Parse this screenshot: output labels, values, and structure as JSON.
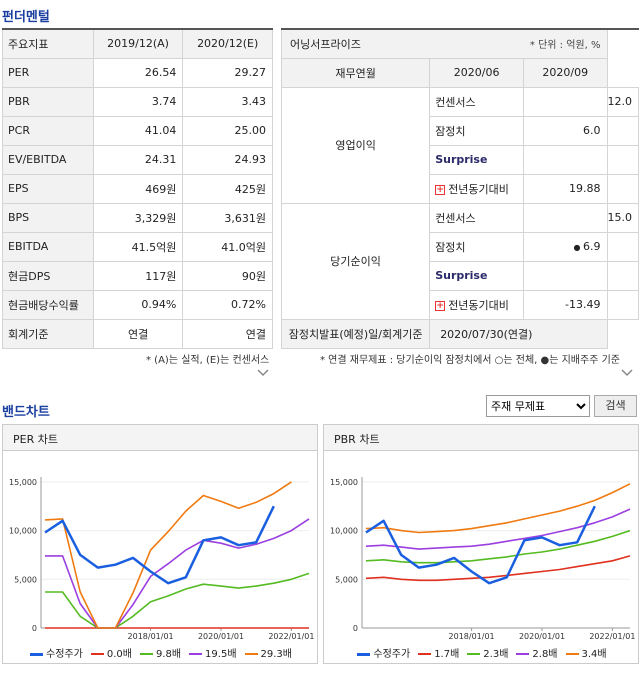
{
  "fundamental": {
    "title": "펀더멘털",
    "headers": [
      "주요지표",
      "2019/12(A)",
      "2020/12(E)"
    ],
    "rows": [
      {
        "label": "PER",
        "a": "26.54",
        "b": "29.27"
      },
      {
        "label": "PBR",
        "a": "3.74",
        "b": "3.43"
      },
      {
        "label": "PCR",
        "a": "41.04",
        "b": "25.00"
      },
      {
        "label": "EV/EBITDA",
        "a": "24.31",
        "b": "24.93"
      },
      {
        "label": "EPS",
        "a": "469원",
        "b": "425원"
      },
      {
        "label": "BPS",
        "a": "3,329원",
        "b": "3,631원"
      },
      {
        "label": "EBITDA",
        "a": "41.5억원",
        "b": "41.0억원"
      },
      {
        "label": "현금DPS",
        "a": "117원",
        "b": "90원"
      },
      {
        "label": "현금배당수익률",
        "a": "0.94%",
        "b": "0.72%"
      },
      {
        "label": "회계기준",
        "a": "연결",
        "b": "연결"
      }
    ],
    "note": "* (A)는 실적, (E)는 컨센서스"
  },
  "surprise": {
    "title": "어닝서프라이즈",
    "unit": "* 단위 : 억원, %",
    "headers": [
      "재무연월",
      "2020/06",
      "2020/09"
    ],
    "groups": [
      {
        "name": "영업이익",
        "rows": [
          {
            "label": "컨센서스",
            "a": "",
            "b": "12.0"
          },
          {
            "label": "잠정치",
            "a": "6.0",
            "b": ""
          },
          {
            "label": "Surprise",
            "a": "",
            "b": ""
          },
          {
            "label": "전년동기대비",
            "a": "19.88",
            "b": ""
          }
        ]
      },
      {
        "name": "당기순이익",
        "rows": [
          {
            "label": "컨센서스",
            "a": "",
            "b": "15.0"
          },
          {
            "label": "잠정치",
            "a": "6.9",
            "b": ""
          },
          {
            "label": "Surprise",
            "a": "",
            "b": ""
          },
          {
            "label": "전년동기대비",
            "a": "-13.49",
            "b": ""
          }
        ]
      }
    ],
    "footer_label": "잠정치발표(예정)일/회계기준",
    "footer_value": "2020/07/30(연결)",
    "note": "* 연결 재무제표 : 당기순이익 잠정치에서 ○는 전체, ●는 지배주주 기준"
  },
  "band": {
    "title": "밴드차트",
    "select_value": "주재 무제표",
    "search_label": "검색"
  },
  "chart_data": [
    {
      "type": "line",
      "title": "PER 차트",
      "x": [
        "2015/01",
        "2015/07",
        "2016/01",
        "2016/07",
        "2017/01",
        "2017/07",
        "2018/01",
        "2018/07",
        "2019/01",
        "2019/07",
        "2020/01",
        "2020/07",
        "2021/01",
        "2021/07",
        "2022/01",
        "2022/07"
      ],
      "xticks": [
        "2018/01/01",
        "2020/01/01",
        "2022/01/01"
      ],
      "yticks": [
        "0",
        "5,000",
        "10,000",
        "15,000"
      ],
      "ylim": [
        0,
        15500
      ],
      "series": [
        {
          "name": "수정주가",
          "color": "#1a5fe0",
          "values": [
            9800,
            11000,
            7500,
            6200,
            6500,
            7200,
            5800,
            4600,
            5200,
            9000,
            9300,
            8500,
            8800,
            12500,
            null,
            null
          ]
        },
        {
          "name": "0.0배",
          "color": "#e0301e",
          "values": [
            0,
            0,
            0,
            0,
            0,
            0,
            0,
            0,
            0,
            0,
            0,
            0,
            0,
            0,
            0,
            0
          ]
        },
        {
          "name": "9.8배",
          "color": "#55bb22",
          "values": [
            3700,
            3700,
            1200,
            0,
            0,
            1200,
            2700,
            3300,
            4000,
            4500,
            4300,
            4100,
            4300,
            4600,
            5000,
            5600
          ]
        },
        {
          "name": "19.5배",
          "color": "#9b3fe0",
          "values": [
            7400,
            7400,
            2500,
            0,
            0,
            2400,
            5300,
            6600,
            8000,
            9000,
            8700,
            8200,
            8600,
            9200,
            10000,
            11200
          ]
        },
        {
          "name": "29.3배",
          "color": "#f07a10",
          "values": [
            11100,
            11200,
            3700,
            0,
            0,
            3600,
            8000,
            9900,
            12000,
            13600,
            13000,
            12300,
            12900,
            13800,
            15000,
            null
          ]
        }
      ]
    },
    {
      "type": "line",
      "title": "PBR 차트",
      "x": [
        "2015/01",
        "2015/07",
        "2016/01",
        "2016/07",
        "2017/01",
        "2017/07",
        "2018/01",
        "2018/07",
        "2019/01",
        "2019/07",
        "2020/01",
        "2020/07",
        "2021/01",
        "2021/07",
        "2022/01",
        "2022/07"
      ],
      "xticks": [
        "2018/01/01",
        "2020/01/01",
        "2022/01/01"
      ],
      "yticks": [
        "0",
        "5,000",
        "10,000",
        "15,000"
      ],
      "ylim": [
        0,
        15500
      ],
      "series": [
        {
          "name": "수정주가",
          "color": "#1a5fe0",
          "values": [
            9800,
            11000,
            7500,
            6200,
            6500,
            7200,
            5800,
            4600,
            5200,
            9000,
            9300,
            8500,
            8800,
            12500,
            null,
            null
          ]
        },
        {
          "name": "1.7배",
          "color": "#e0301e",
          "values": [
            5100,
            5200,
            5000,
            4900,
            4900,
            5000,
            5100,
            5200,
            5400,
            5600,
            5800,
            6000,
            6300,
            6600,
            6900,
            7400
          ]
        },
        {
          "name": "2.3배",
          "color": "#55bb22",
          "values": [
            6900,
            7000,
            6800,
            6700,
            6700,
            6800,
            6900,
            7100,
            7300,
            7600,
            7800,
            8100,
            8500,
            8900,
            9400,
            10000
          ]
        },
        {
          "name": "2.8배",
          "color": "#9b3fe0",
          "values": [
            8400,
            8500,
            8300,
            8100,
            8200,
            8300,
            8400,
            8600,
            8900,
            9200,
            9500,
            9900,
            10300,
            10800,
            11400,
            12200
          ]
        },
        {
          "name": "3.4배",
          "color": "#f07a10",
          "values": [
            10200,
            10300,
            10000,
            9800,
            9900,
            10000,
            10200,
            10500,
            10800,
            11200,
            11600,
            12000,
            12500,
            13100,
            13900,
            14800
          ]
        }
      ]
    }
  ]
}
